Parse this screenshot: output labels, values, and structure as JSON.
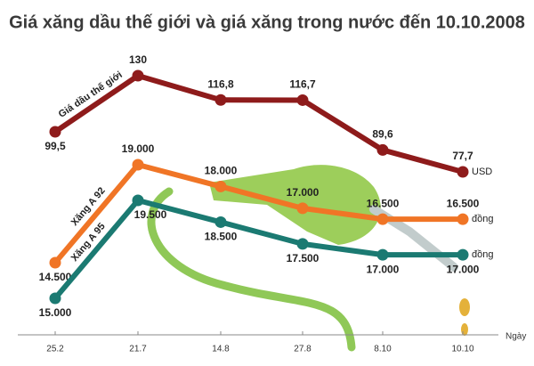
{
  "chart_data": {
    "type": "line",
    "title": "Giá xăng dầu thế giới và giá xăng trong nước đến 10.10.2008",
    "x_label": "Ngày",
    "categories": [
      "25.2",
      "21.7",
      "14.8",
      "27.8",
      "8.10",
      "10.10"
    ],
    "series": [
      {
        "name": "Giá dầu thế giới",
        "color": "#8e1b1b",
        "unit": "USD",
        "values": [
          99.5,
          130,
          116.8,
          116.7,
          89.6,
          77.7
        ],
        "value_labels": [
          "99,5",
          "130",
          "116,8",
          "116,7",
          "89,6",
          "77,7"
        ]
      },
      {
        "name": "Xăng A 92",
        "color": "#f07526",
        "unit": "đồng",
        "values": [
          14500,
          19000,
          18000,
          17000,
          16500,
          16500
        ],
        "value_labels": [
          "14.500",
          "19.000",
          "18.000",
          "17.000",
          "16.500",
          "16.500"
        ]
      },
      {
        "name": "Xăng A 95",
        "color": "#1b7a72",
        "unit": "đồng",
        "values": [
          15000,
          19500,
          18500,
          17500,
          17000,
          17000
        ],
        "value_labels": [
          "15.000",
          "19.500",
          "18.500",
          "17.500",
          "17.000",
          "17.000"
        ]
      }
    ]
  }
}
